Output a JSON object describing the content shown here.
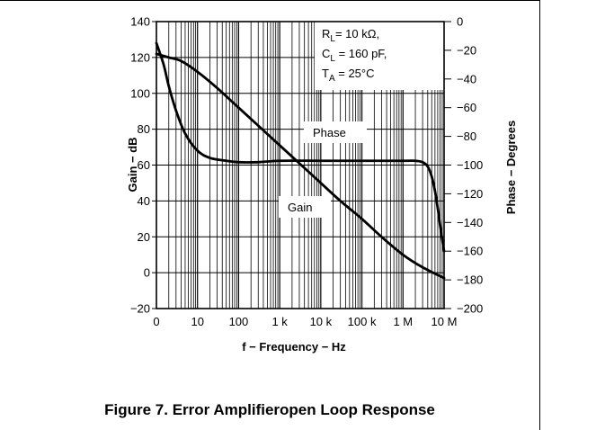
{
  "figure": {
    "caption": "Figure 7. Error Amplifieropen Loop Response"
  },
  "chart_data": {
    "type": "line",
    "xlabel": "f − Frequency − Hz",
    "ylabel_left": "Gain − dB",
    "ylabel_right": "Phase − Degrees",
    "x_scale": "log",
    "grid": true,
    "x_ticks": [
      {
        "value": 1,
        "label": "0"
      },
      {
        "value": 10,
        "label": "10"
      },
      {
        "value": 100,
        "label": "100"
      },
      {
        "value": 1000,
        "label": "1 k"
      },
      {
        "value": 10000,
        "label": "10 k"
      },
      {
        "value": 100000,
        "label": "100 k"
      },
      {
        "value": 1000000,
        "label": "1 M"
      },
      {
        "value": 10000000,
        "label": "10 M"
      }
    ],
    "xlim": [
      1,
      10000000
    ],
    "ylim_left": [
      -20,
      140
    ],
    "yticks_left": [
      -20,
      0,
      20,
      40,
      60,
      80,
      100,
      120,
      140
    ],
    "ylim_right": [
      -200,
      0
    ],
    "yticks_right": [
      0,
      -20,
      -40,
      -60,
      -80,
      -100,
      -120,
      -140,
      -160,
      -180,
      -200
    ],
    "series": [
      {
        "name": "Gain",
        "axis": "left",
        "color": "#000000",
        "x": [
          1,
          2,
          4,
          10,
          30,
          100,
          300,
          1000,
          3000,
          10000,
          30000,
          100000,
          300000,
          1000000,
          3000000,
          10000000
        ],
        "y": [
          122,
          120,
          118,
          112,
          103,
          92,
          82,
          71,
          61,
          50,
          40,
          30,
          20,
          10,
          3,
          -3
        ]
      },
      {
        "name": "Phase",
        "axis": "right",
        "color": "#000000",
        "x": [
          1,
          1.5,
          2,
          3,
          5,
          10,
          20,
          50,
          100,
          300,
          1000,
          10000,
          100000,
          1000000,
          2000000,
          3000000,
          4000000,
          5000000,
          6000000,
          7000000,
          8000000,
          9000000,
          10000000
        ],
        "y": [
          -15,
          -30,
          -45,
          -62,
          -78,
          -90,
          -95,
          -97,
          -98,
          -98,
          -97,
          -97,
          -97,
          -97,
          -97,
          -98,
          -101,
          -108,
          -118,
          -130,
          -142,
          -152,
          -160
        ]
      }
    ],
    "annotations": [
      {
        "id": "conditions",
        "lines": [
          {
            "main": "R",
            "sub": "L",
            "rest": "= 10 kΩ,"
          },
          {
            "main": "C",
            "sub": "L",
            "rest": " = 160 pF,"
          },
          {
            "main": "T",
            "sub": "A",
            "rest": " = 25°C"
          }
        ]
      },
      {
        "id": "phase-label",
        "text": "Phase"
      },
      {
        "id": "gain-label",
        "text": "Gain"
      }
    ]
  }
}
